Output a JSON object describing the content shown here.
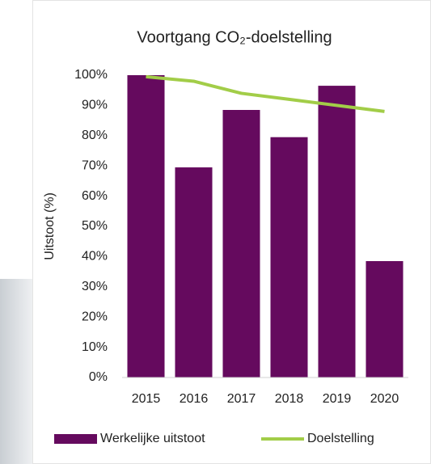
{
  "chart_data": {
    "type": "bar",
    "title": "Voortgang CO₂-doelstelling",
    "y_label": "Uitstoot (%)",
    "categories": [
      "2015",
      "2016",
      "2017",
      "2018",
      "2019",
      "2020"
    ],
    "series": [
      {
        "name": "Werkelijke uitstoot",
        "type": "bar",
        "color": "#650a5e",
        "values": [
          100,
          69.5,
          88.5,
          79.5,
          96.5,
          38.5
        ]
      },
      {
        "name": "Doelstelling",
        "type": "line",
        "color": "#a2cd48",
        "values": [
          99.5,
          98,
          94,
          92,
          90,
          88
        ]
      }
    ],
    "ylim": [
      0,
      100
    ],
    "yticks": [
      {
        "value": 0,
        "label": "0%"
      },
      {
        "value": 10,
        "label": "10%"
      },
      {
        "value": 20,
        "label": "20%"
      },
      {
        "value": 30,
        "label": "30%"
      },
      {
        "value": 40,
        "label": "40%"
      },
      {
        "value": 50,
        "label": "50%"
      },
      {
        "value": 60,
        "label": "60%"
      },
      {
        "value": 70,
        "label": "70%"
      },
      {
        "value": 80,
        "label": "80%"
      },
      {
        "value": 90,
        "label": "90%"
      },
      {
        "value": 100,
        "label": "100%"
      }
    ],
    "grid": false,
    "legend": "bottom"
  }
}
